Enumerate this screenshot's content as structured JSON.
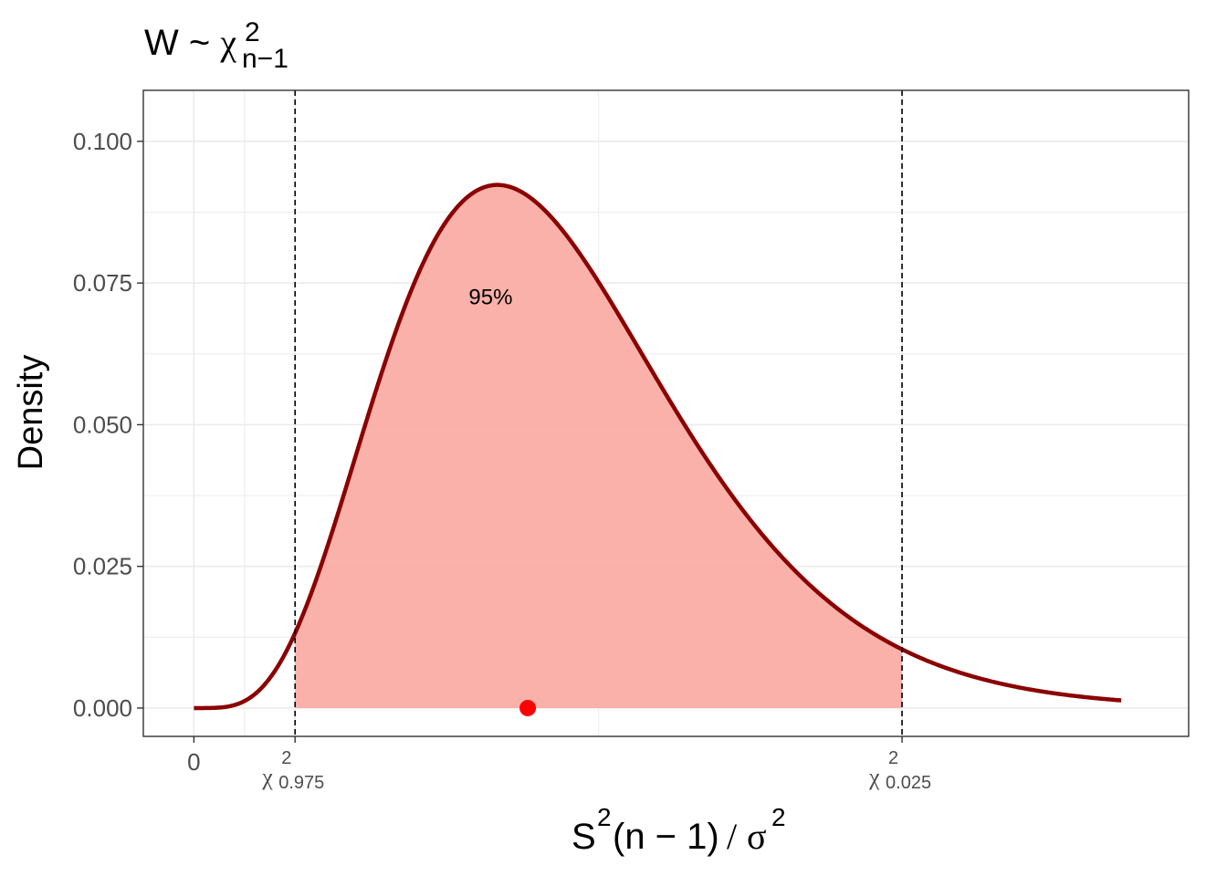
{
  "chart_data": {
    "type": "area",
    "title": {
      "prefix": "W ~ ",
      "symbol": "χ",
      "superscript": "2",
      "subscript": "n−1"
    },
    "ylabel": "Density",
    "xlabel": {
      "s": "S",
      "sup1": "2",
      "mid": "(n − 1)",
      "slash": "/",
      "sigma": "σ",
      "sup2": "2"
    },
    "distribution": "chi-squared",
    "degrees_of_freedom": 11,
    "xlim": [
      -1.5,
      29.5
    ],
    "ylim": [
      -0.005,
      0.109
    ],
    "curve_x_range": [
      0,
      27.5
    ],
    "y_ticks": [
      {
        "value": 0.0,
        "label": "0.000"
      },
      {
        "value": 0.025,
        "label": "0.025"
      },
      {
        "value": 0.05,
        "label": "0.050"
      },
      {
        "value": 0.075,
        "label": "0.075"
      },
      {
        "value": 0.1,
        "label": "0.100"
      }
    ],
    "x_ticks": [
      {
        "value": 0,
        "label": "0"
      },
      {
        "value": 3.0,
        "label": "χ",
        "sup": "2",
        "sub": "0.975"
      },
      {
        "value": 21.0,
        "label": "χ",
        "sup": "2",
        "sub": "0.025"
      }
    ],
    "critical_values": {
      "lower": 3.0,
      "upper": 21.0
    },
    "shaded_region": {
      "from": 3.0,
      "to": 21.0,
      "label": "95%",
      "label_x": 8.8,
      "label_y": 0.0725
    },
    "observed_point": {
      "x": 9.9,
      "y": 0
    },
    "grid": true,
    "colors": {
      "curve": "#8B0000",
      "fill": "#F8A8A0",
      "point": "#FF0000",
      "grid": "#EBEBEB",
      "axis_text": "#4D4D4D",
      "dashed": "#000000"
    }
  }
}
